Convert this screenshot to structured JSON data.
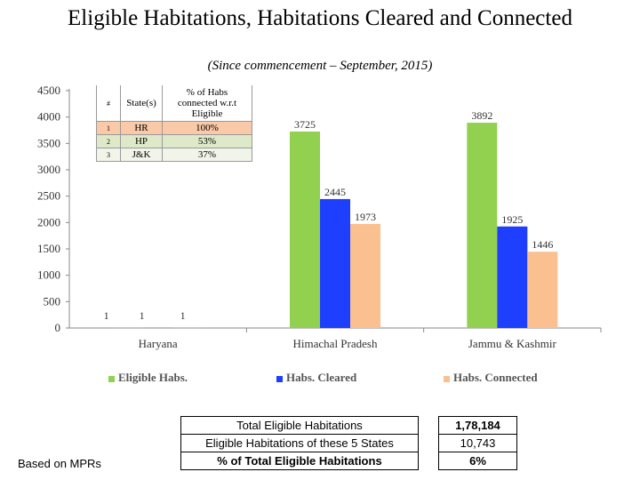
{
  "title": "Eligible Habitations, Habitations Cleared and Connected",
  "subtitle": "(Since commencement – September, 2015)",
  "chart_data": {
    "type": "bar",
    "categories": [
      "Haryana",
      "Himachal Pradesh",
      "Jammu & Kashmir"
    ],
    "series": [
      {
        "name": "Eligible Habs.",
        "values": [
          1,
          3725,
          3892
        ],
        "color": "#92d050"
      },
      {
        "name": "Habs. Cleared",
        "values": [
          1,
          2445,
          1925
        ],
        "color": "#1f3fff"
      },
      {
        "name": "Habs. Connected",
        "values": [
          1,
          1973,
          1446
        ],
        "color": "#fac090"
      }
    ],
    "data_labels": [
      [
        "1",
        "1",
        "1"
      ],
      [
        "3725",
        "2445",
        "1973"
      ],
      [
        "3892",
        "1925",
        "1446"
      ]
    ],
    "yticks": [
      0,
      500,
      1000,
      1500,
      2000,
      2500,
      3000,
      3500,
      4000,
      4500
    ],
    "ylim": [
      0,
      4500
    ],
    "legend_position": "bottom",
    "grid": false
  },
  "state_table": {
    "headers": [
      "#",
      "State(s)",
      "% of Habs connected w.r.t Eligible"
    ],
    "rows": [
      [
        "1",
        "HR",
        "100%"
      ],
      [
        "2",
        "HP",
        "53%"
      ],
      [
        "3",
        "J&K",
        "37%"
      ]
    ]
  },
  "summary": {
    "rows": [
      {
        "label": "Total Eligible Habitations",
        "value": "1,78,184"
      },
      {
        "label": "Eligible Habitations of these 5 States",
        "value": "10,743"
      },
      {
        "label": "% of Total Eligible Habitations",
        "value": "6%"
      }
    ]
  },
  "footnote": "Based on MPRs"
}
